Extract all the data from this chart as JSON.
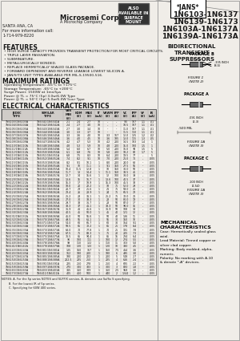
{
  "title_lines": [
    "1N6103-1N6137",
    "1N6139-1N6173",
    "1N6103A-1N6137A",
    "1N6139A-1N6173A"
  ],
  "jans_label": "*JANS*",
  "company": "Microsemi Corp.",
  "also_label": "ALSO\nAVAILABLE IN\nSURFACE\nMOUNT",
  "subtitle": "BIDIRECTIONAL\nTRANSIENT\nSUPPRESSORS",
  "address_lines": [
    "SANTA ANA, CA",
    "For more information call:",
    "1-714-979-8220"
  ],
  "features_title": "FEATURES",
  "features": [
    "HIGH SURGE CAPACITY PROVIDES TRANSIENT PROTECTION FOR MOST CRITICAL CIRCUITS.",
    "TRIPLE LAYER PASSIVATION.",
    "SUBMINIATURE.",
    "METALLURGICALLY BONDED.",
    "REPLACE HERMETICALLY SEALED GLASS PACKAGE.",
    "FORWARD DEPENDENT AND REVERSE LEAKAGE LOWEST SILICON A.",
    "JAN/S/TX UNIT TYPES AVAILABLE PER MIL-S-19500-516."
  ],
  "max_ratings_title": "MAXIMUM RATINGS",
  "max_ratings": [
    "Operating Temperature: -65°C to +175°C",
    "Storage Temperature: -65°C to +200°C",
    "Surge Power: 1500W at 1ms/5μs",
    "Power @ TL = 75°C (5p) 3.0w/6.0W Type",
    "Power @ TL = 50°C (5p) 5.0w/6.0W 5uur Type"
  ],
  "elec_char_title": "ELECTRICAL CHARACTERISTICS",
  "table_headers": [
    "JEDEC",
    "SIMILAR",
    "VBR MIN",
    "VBR NOM",
    "VBR MAX",
    "TEST CURRENT IT (mA)",
    "MAX PEAK VOLTAGE (V)",
    "MAX PEAK CURRENT (A)",
    "MAX CLAMPING VOLTAGE (V)",
    "MAX CLAMPING CURRENT (A)",
    "MAX FORWARD VOLTAGE (V)",
    "MAX REVERSE CURRENT (uA)"
  ],
  "col_headers_row1": [
    "JEDEC",
    "SIMILAR",
    "BREAKDOWN VOLTAGE MIN",
    "NOM",
    "MAX",
    "TEST CURRENT IT",
    "MAX PEAK REVERSE SURGE VOLTAGE",
    "MAX PEAK CURRENT",
    "MAX CLAMPING VOLTAGE",
    "MAX CLAMPING CURRENT",
    "MAX FORWARD VOLTAGE VF",
    "MAX REVERSE CURRENT IR"
  ],
  "col_headers_row2": [
    "TYPE",
    "TYPE",
    "(V)",
    "(V)",
    "(V)",
    "(mA)",
    "VRWM (V)",
    "IPP (A)",
    "VC (V)",
    "IPP",
    "VF (V)",
    "IR (uA)"
  ],
  "table_data": [
    [
      "1N6103/1N6103A",
      "1N6341/1N6341A",
      "2.1",
      "2.4",
      "2.7",
      "10",
      "--",
      "--",
      "9.5",
      "107",
      "1.1",
      ".01"
    ],
    [
      "1N6104/1N6104A",
      "1N6342/1N6342A",
      "2.4",
      "2.7",
      "3.0",
      "10",
      "--",
      "--",
      "10.5",
      "107",
      "1.1",
      ".01"
    ],
    [
      "1N6105/1N6105A",
      "1N6343/1N6343A",
      "2.7",
      "3.0",
      "3.4",
      "10",
      "--",
      "--",
      "11.0",
      "107",
      "1.1",
      ".01"
    ],
    [
      "1N6106/1N6106A",
      "1N6344/1N6344A",
      "3.0",
      "3.3",
      "3.7",
      "10",
      "--",
      "--",
      "11.5",
      "110",
      "1.1",
      ".01"
    ],
    [
      "1N6107/1N6107A",
      "1N6345/1N6345A",
      "3.3",
      "3.6",
      "4.0",
      "10",
      "3.3",
      "167",
      "12.0",
      "125",
      "1.2",
      ".02"
    ],
    [
      "1N6108/1N6108A",
      "1N6346/1N6346A",
      "3.6",
      "4.0",
      "4.5",
      "10",
      "3.6",
      "185",
      "13.0",
      "115",
      "1.3",
      ".05"
    ],
    [
      "1N6109/1N6109A",
      "1N6347/1N6347A",
      "4.2",
      "4.7",
      "5.3",
      "10",
      "4.2",
      "200",
      "14.5",
      "103",
      "1.4",
      "1"
    ],
    [
      "1N6110/1N6110A",
      "1N6348/1N6348A",
      "4.8",
      "5.3",
      "5.9",
      "10",
      "4.8",
      "200",
      "15.0",
      "100",
      "1.5",
      "1"
    ],
    [
      "1N6111/1N6111A",
      "1N6349/1N6349A",
      "5.4",
      "6.0",
      "6.7",
      "10",
      "5.0",
      "200",
      "16.0",
      "94",
      "1.5",
      "5"
    ],
    [
      "1N6112/1N6112A",
      "1N6350/1N6350A",
      "6.1",
      "6.8",
      "7.6",
      "10",
      "5.8",
      "200",
      "18.2",
      "82",
      "1.7",
      "5"
    ],
    [
      "1N6113/1N6113A",
      "1N6351/1N6351A",
      "6.8",
      "7.5",
      "8.3",
      "10",
      "6.4",
      "200",
      "19.5",
      "77",
      "--",
      "5"
    ],
    [
      "1N6114/1N6114A",
      "1N6352/1N6352A",
      "7.4",
      "8.2",
      "9.1",
      "10",
      "7.0",
      "200",
      "21.0",
      "71",
      "--",
      ".005"
    ],
    [
      "1N6115/1N6115A",
      "1N6353/1N6353A",
      "8.2",
      "9.1",
      "10.1",
      "1",
      "8.0",
      "200",
      "24.0",
      "63",
      "--",
      ".005"
    ],
    [
      "1N6116/1N6116A",
      "1N6354/1N6354A",
      "9.1",
      "10",
      "11.1",
      "1",
      "9.1",
      "150",
      "27.5",
      "55",
      "--",
      ".005"
    ],
    [
      "1N6117/1N6117A",
      "1N6355/1N6355A",
      "10.4",
      "11.5",
      "12.8",
      "1",
      "10",
      "150",
      "30.0",
      "50",
      "--",
      ".005"
    ],
    [
      "1N6118/1N6118A",
      "1N6356/1N6356A",
      "11.7",
      "13",
      "14.4",
      "1",
      "11.1",
      "150",
      "33.5",
      "45",
      "--",
      ".005"
    ],
    [
      "1N6119/1N6119A",
      "1N6357/1N6357A",
      "12.7",
      "14",
      "15.6",
      "1",
      "12",
      "100",
      "38.0",
      "39",
      "--",
      ".005"
    ],
    [
      "1N6120/1N6120A",
      "1N6358/1N6358A",
      "13.6",
      "15",
      "16.7",
      "1",
      "13.6",
      "100",
      "40.5",
      "37",
      "--",
      ".005"
    ],
    [
      "1N6121/1N6121A",
      "1N6359/1N6359A",
      "15.3",
      "17",
      "18.9",
      "1",
      "15.3",
      "100",
      "45.5",
      "33",
      "--",
      ".005"
    ],
    [
      "1N6122/1N6122A",
      "1N6360/1N6360A",
      "18.0",
      "20",
      "22.2",
      "1",
      "18",
      "75",
      "52.0",
      "29",
      "--",
      ".005"
    ],
    [
      "1N6123/1N6123A",
      "1N6361/1N6361A",
      "20.7",
      "23",
      "25.6",
      "1",
      "21",
      "75",
      "59.0",
      "25",
      "--",
      ".005"
    ],
    [
      "1N6124/1N6124A",
      "1N6362/1N6362A",
      "23.4",
      "26",
      "28.9",
      "1",
      "24",
      "75",
      "66.5",
      "23",
      "--",
      ".005"
    ],
    [
      "1N6125/1N6125A",
      "1N6363/1N6363A",
      "25.2",
      "28",
      "31.1",
      "1",
      "25.2",
      "75",
      "72.0",
      "21",
      "--",
      ".005"
    ],
    [
      "1N6126/1N6126A",
      "1N6364/1N6364A",
      "27.0",
      "30",
      "33.3",
      "1",
      "28",
      "50",
      "80.0",
      "19",
      "--",
      ".005"
    ],
    [
      "1N6127/1N6127A",
      "1N6365/1N6365A",
      "29.7",
      "33",
      "36.7",
      "1",
      "28",
      "50",
      "87.0",
      "17",
      "--",
      ".005"
    ],
    [
      "1N6128/1N6128A",
      "1N6366/1N6366A",
      "33.3",
      "37",
      "41.1",
      "1",
      "33.3",
      "50",
      "98.0",
      "15",
      "--",
      ".005"
    ],
    [
      "1N6129/1N6129A",
      "1N6367/1N6367A",
      "36.9",
      "41",
      "45.6",
      "1",
      "36.9",
      "50",
      "108",
      "14",
      "--",
      ".005"
    ],
    [
      "1N6130/1N6130A",
      "1N6368/1N6368A",
      "40.5",
      "45",
      "50.0",
      "1",
      "45",
      "40",
      "121",
      "12",
      "--",
      ".005"
    ],
    [
      "1N6131/1N6131A",
      "1N6369/1N6369A",
      "45.0",
      "50",
      "55.6",
      "1",
      "50",
      "40",
      "136",
      "11",
      "--",
      ".005"
    ],
    [
      "1N6132/1N6132A",
      "1N6370/1N6370A",
      "49.5",
      "55",
      "61.1",
      "1",
      "55",
      "30",
      "150",
      "10",
      "--",
      ".005"
    ],
    [
      "1N6133/1N6133A",
      "1N6371/1N6371A",
      "54.0",
      "60",
      "66.7",
      "1",
      "60",
      "30",
      "164",
      "9.1",
      "--",
      ".005"
    ],
    [
      "1N6134/1N6134A",
      "1N6372/1N6372A",
      "58.5",
      "65",
      "72.2",
      "1",
      "65",
      "25",
      "178",
      "8.4",
      "--",
      ".005"
    ],
    [
      "1N6135/1N6135A",
      "1N6373/1N6373A",
      "63.0",
      "70",
      "77.8",
      "1",
      "70",
      "25",
      "191",
      "7.8",
      "--",
      ".005"
    ],
    [
      "1N6136/1N6136A",
      "1N6374/1N6374A",
      "67.5",
      "75",
      "83.3",
      "1",
      "75",
      "20",
      "205",
      "7.3",
      "--",
      ".005"
    ],
    [
      "1N6137/1N6137A",
      "1N6375/1N6375A",
      "76.5",
      "85",
      "94.4",
      "1",
      "85",
      "15",
      "234",
      "6.4",
      "--",
      ".005"
    ],
    [
      "1N6139/1N6139A",
      "1N6377/1N6377A",
      "90",
      "100",
      "111",
      "1",
      "100",
      "12",
      "274",
      "5.5",
      "--",
      ".005"
    ],
    [
      "1N6140/1N6140A",
      "1N6378/1N6378A",
      "99",
      "110",
      "122",
      "1",
      "110",
      "11",
      "303",
      "5.0",
      "--",
      ".005"
    ],
    [
      "1N6141/1N6141A",
      "1N6379/1N6379A",
      "108",
      "120",
      "133",
      "1",
      "120",
      "10",
      "330",
      "4.5",
      "--",
      ".005"
    ],
    [
      "1N6143/1N6143A",
      "1N6381/1N6381A",
      "135",
      "150",
      "167",
      "1",
      "150",
      "7.5",
      "414",
      "3.6",
      "--",
      ".005"
    ],
    [
      "1N6145/1N6145A",
      "1N6383/1N6383A",
      "162",
      "180",
      "200",
      "1",
      "180",
      "6",
      "495",
      "3.0",
      "--",
      ".005"
    ],
    [
      "1N6147/1N6147A",
      "1N6385/1N6385A",
      "180",
      "200",
      "222",
      "1",
      "200",
      "5",
      "548",
      "2.7",
      "--",
      ".005"
    ],
    [
      "1N6150/1N6150A",
      "1N6388/1N6388A",
      "202.5",
      "225",
      "250",
      "1",
      "225",
      "4",
      "616",
      "2.4",
      "--",
      ".005"
    ],
    [
      "1N6153/1N6153A",
      "1N6391/1N6391A",
      "225",
      "250",
      "278",
      "1",
      "250",
      "4",
      "685",
      "2.2",
      "--",
      ".005"
    ],
    [
      "1N6159/1N6159A",
      "1N6397/1N6397A",
      "270",
      "300",
      "333",
      "1",
      "300",
      "3",
      "820",
      "1.8",
      "--",
      ".005"
    ],
    [
      "1N6165/1N6165A",
      "1N6403/1N6403A",
      "315",
      "350",
      "389",
      "1",
      "350",
      "2.5",
      "958",
      "1.6",
      "--",
      ".005"
    ],
    [
      "1N6173/1N6173A",
      "1N6411/1N6411A",
      "405",
      "450",
      "500",
      "1",
      "440",
      "2",
      "1244",
      "1.2",
      "--",
      ".005"
    ]
  ],
  "notes": [
    "NOTES: A. For the 5p series NOTES and SUFFIX version, A. denotes use Suffix S specifying.",
    "B. For the lowest IR of 5p series.",
    "C. Specifying for 60W 400 series."
  ],
  "mech_title": "MECHANICAL\nCHARACTERISTICS",
  "mech_lines": [
    "Case: Hermetically sealed glass",
    "axial.",
    "Lead Material: Tinned copper or",
    "silver clad copper.",
    "Marking: Body molded, alpha-",
    "numeric.",
    "Polarity: No marking with A-10",
    "& denote \"-A\" devices."
  ],
  "bg_color": "#f0ede8",
  "text_color": "#1a1a1a",
  "table_header_bg": "#d0ccc8"
}
